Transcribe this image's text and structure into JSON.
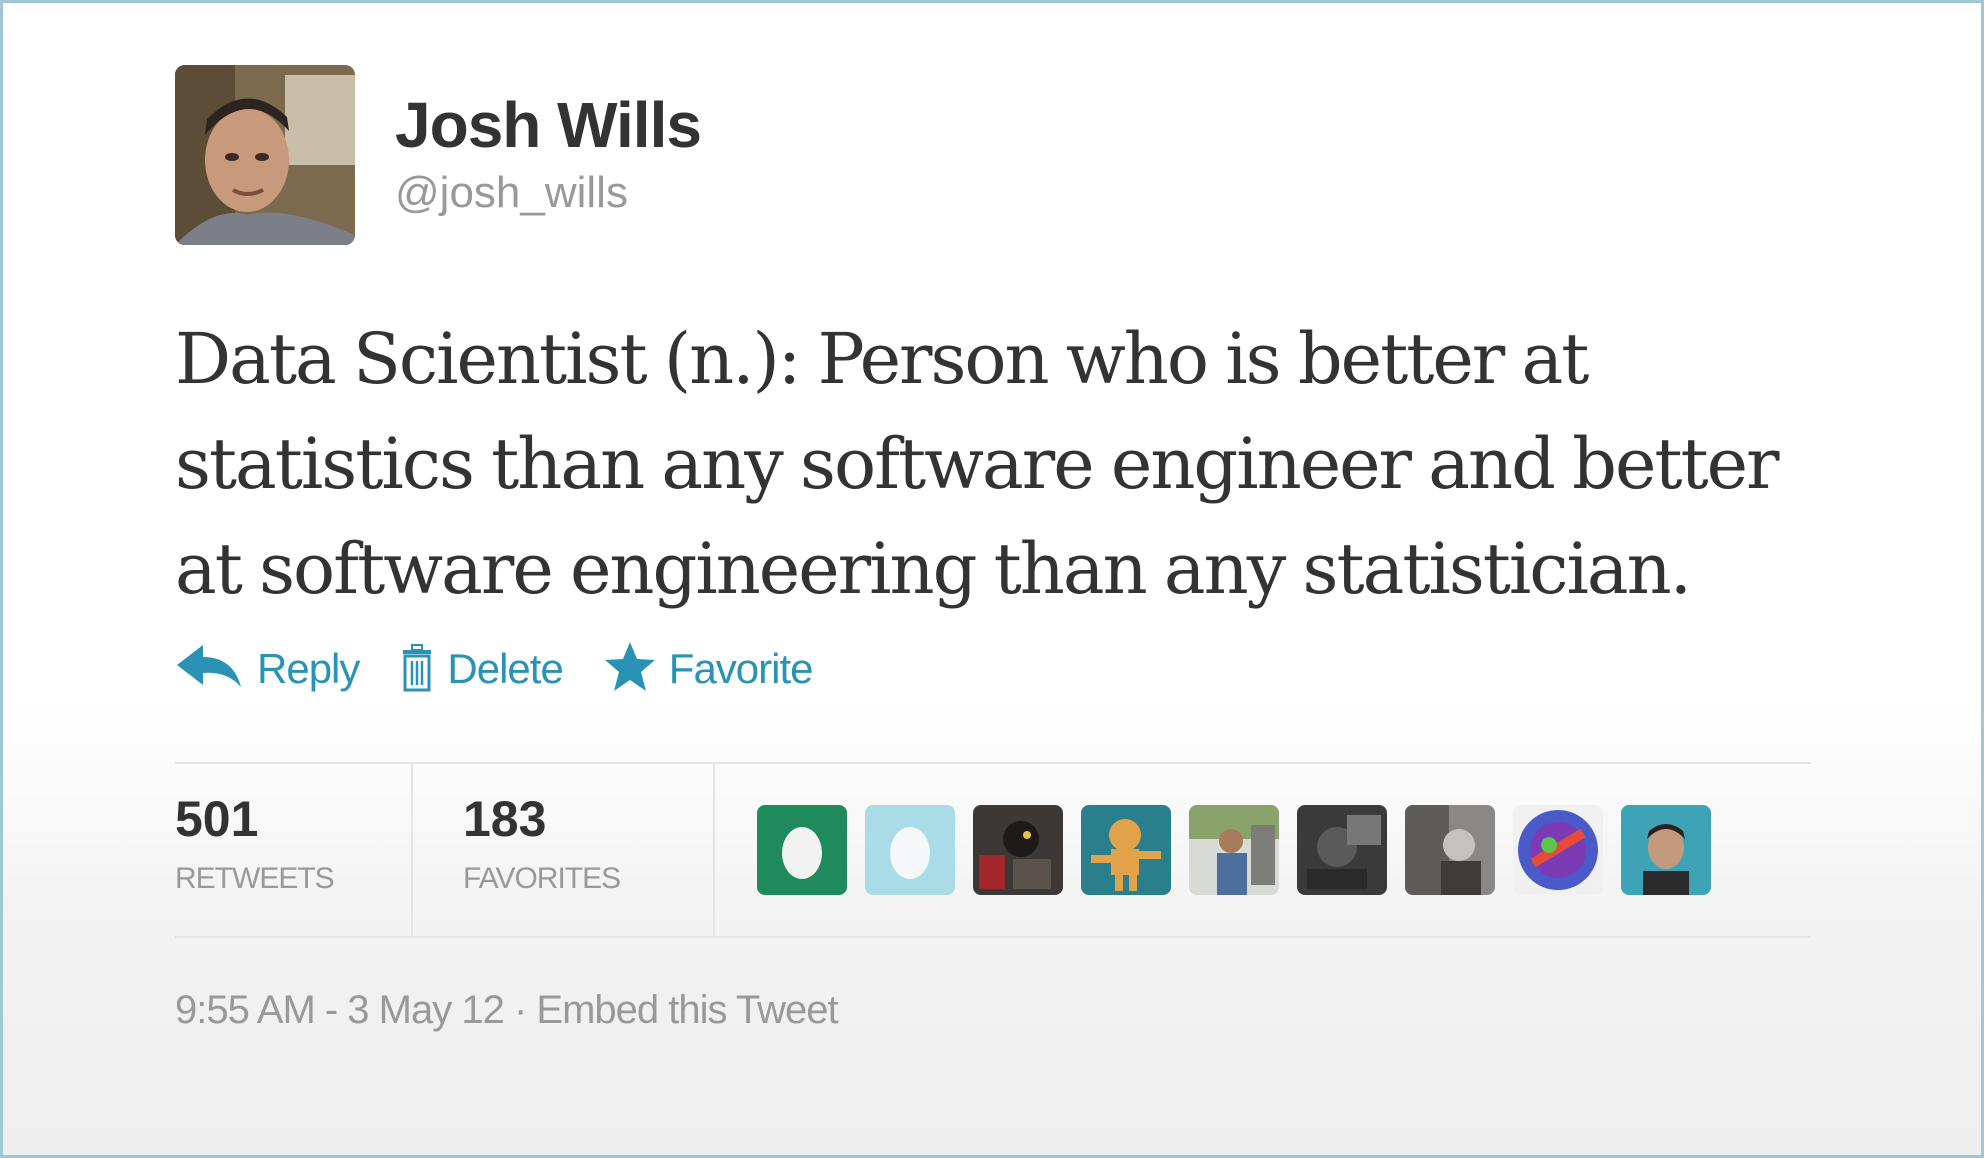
{
  "user": {
    "name": "Josh Wills",
    "handle": "@josh_wills"
  },
  "tweet": {
    "text": "Data Scientist (n.): Person who is better at statistics than any software engineer and better at software engineering than any statistician."
  },
  "actions": {
    "reply": "Reply",
    "delete": "Delete",
    "favorite": "Favorite"
  },
  "stats": {
    "retweets_count": "501",
    "retweets_label": "RETWEETS",
    "favorites_count": "183",
    "favorites_label": "FAVORITES"
  },
  "meta": {
    "timestamp": "9:55 AM - 3 May 12",
    "separator": " · ",
    "embed": "Embed this Tweet"
  },
  "colors": {
    "link": "#2a93b5",
    "muted": "#999999",
    "text": "#333333"
  },
  "favoriters": [
    {
      "kind": "egg-green"
    },
    {
      "kind": "egg-lightblue"
    },
    {
      "kind": "dark-photo"
    },
    {
      "kind": "cartoon-teal"
    },
    {
      "kind": "person-outdoor"
    },
    {
      "kind": "dark-grey-photo"
    },
    {
      "kind": "bw-photo"
    },
    {
      "kind": "colorful-logo"
    },
    {
      "kind": "person-teal"
    }
  ]
}
